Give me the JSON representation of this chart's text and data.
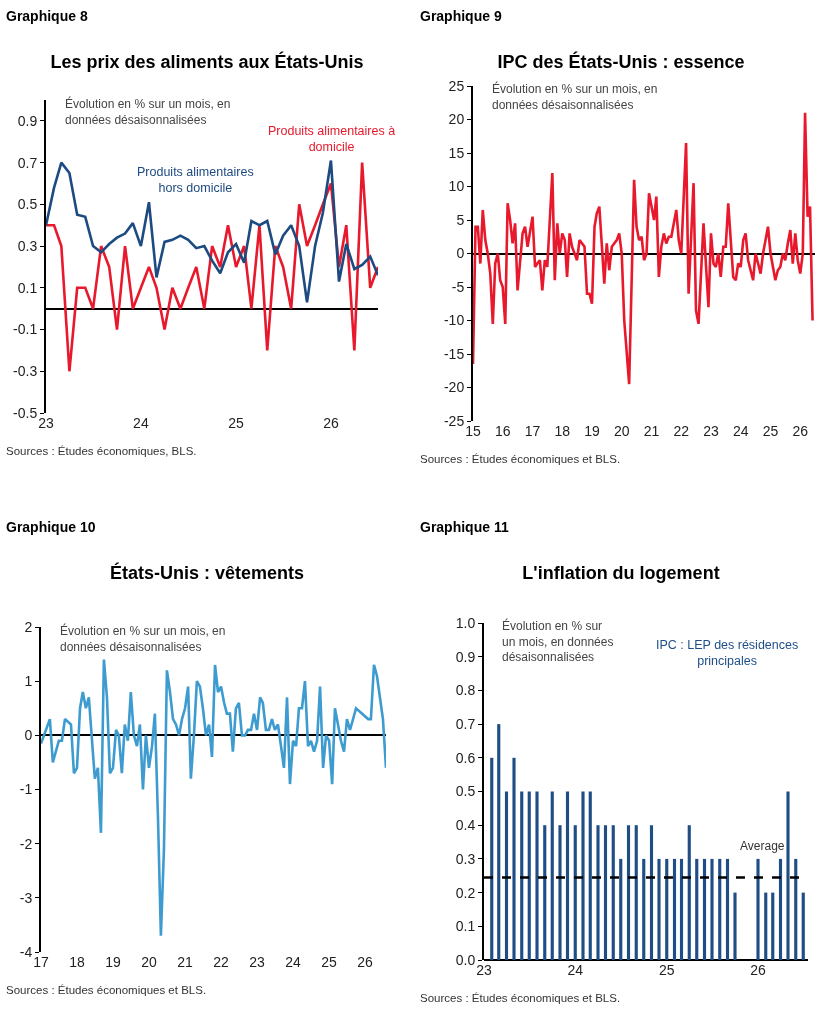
{
  "chart_data": [
    {
      "type": "line",
      "title": "Les prix des aliments aux États-Unis",
      "annotations": [
        "Graphique 8",
        "Évolution en % sur un mois, en données désaisonnalisées",
        "Sources : Études économiques, BLS."
      ],
      "x": [
        "2023-01",
        "2023-02",
        "2023-03",
        "2023-04",
        "2023-05",
        "2023-06",
        "2023-07",
        "2023-08",
        "2023-09",
        "2023-10",
        "2023-11",
        "2023-12",
        "2024-01",
        "2024-02",
        "2024-03",
        "2024-04",
        "2024-05",
        "2024-06",
        "2024-07",
        "2024-08",
        "2024-09",
        "2024-10",
        "2024-11",
        "2024-12",
        "2025-01",
        "2025-02",
        "2025-03",
        "2025-04",
        "2025-05",
        "2025-06",
        "2025-07",
        "2025-08",
        "2025-09",
        "2025-10",
        "2025-11",
        "2025-12",
        "2026-01",
        "2026-02",
        "2026-03",
        "2026-04",
        "2026-05",
        "2026-06",
        "2026-07"
      ],
      "series": [
        {
          "name": "Produits alimentaires à domicile",
          "color": "#e8192c",
          "values": [
            0.4,
            0.4,
            0.3,
            -0.3,
            0.1,
            0.1,
            0.0,
            0.3,
            0.2,
            -0.1,
            0.3,
            0.0,
            0.1,
            0.2,
            0.1,
            -0.1,
            0.1,
            0.0,
            0.1,
            0.2,
            0.0,
            0.3,
            0.2,
            0.4,
            0.2,
            0.3,
            0.0,
            0.4,
            -0.2,
            0.3,
            0.2,
            0.0,
            0.5,
            0.3,
            0.4,
            0.5,
            0.6,
            0.2,
            0.4,
            -0.2,
            0.7,
            0.1,
            0.2
          ]
        },
        {
          "name": "Produits alimentaires hors domicile",
          "color": "#1d4a80",
          "values": [
            0.4,
            0.58,
            0.7,
            0.65,
            0.45,
            0.44,
            0.3,
            0.27,
            0.31,
            0.34,
            0.36,
            0.41,
            0.3,
            0.51,
            0.15,
            0.32,
            0.33,
            0.35,
            0.33,
            0.29,
            0.3,
            0.23,
            0.17,
            0.27,
            0.31,
            0.22,
            0.42,
            0.4,
            0.42,
            0.26,
            0.35,
            0.4,
            0.3,
            0.03,
            0.3,
            0.46,
            0.71,
            0.13,
            0.31,
            0.19,
            0.21,
            0.25,
            0.16
          ]
        }
      ],
      "xlim": [
        "2023-01",
        "2026-07"
      ],
      "xticks": [
        {
          "value": "2023-01",
          "label": "23"
        },
        {
          "value": "2024-01",
          "label": "24"
        },
        {
          "value": "2025-01",
          "label": "25"
        },
        {
          "value": "2026-01",
          "label": "26"
        }
      ],
      "ylim": [
        -0.5,
        1.0
      ],
      "yticks": [
        -0.5,
        -0.3,
        -0.1,
        0.1,
        0.3,
        0.5,
        0.7,
        0.9
      ]
    },
    {
      "type": "line",
      "title": "IPC des États-Unis : essence",
      "annotations": [
        "Graphique 9",
        "Évolution en % sur un mois, en données désaisonnalisées",
        "Sources : Études économiques et BLS."
      ],
      "series": [
        {
          "color": "#e8192c",
          "x": [
            "2015-01",
            "2015-02",
            "2015-03",
            "2015-04",
            "2015-05",
            "2015-06",
            "2015-07",
            "2015-08",
            "2015-09",
            "2015-10",
            "2015-11",
            "2015-12",
            "2016-01",
            "2016-02",
            "2016-03",
            "2016-04",
            "2016-05",
            "2016-06",
            "2016-07",
            "2016-09",
            "2016-10",
            "2016-11",
            "2017-01",
            "2017-02",
            "2017-03",
            "2017-04",
            "2017-05",
            "2017-06",
            "2017-07",
            "2017-09",
            "2017-10",
            "2017-11",
            "2017-12",
            "2018-01",
            "2018-02",
            "2018-03",
            "2018-04",
            "2018-05",
            "2018-07",
            "2018-08",
            "2018-10",
            "2018-11",
            "2018-12",
            "2019-01",
            "2019-02",
            "2019-03",
            "2019-04",
            "2019-06",
            "2019-07",
            "2019-08",
            "2019-09",
            "2019-11",
            "2019-12",
            "2020-01",
            "2020-02",
            "2020-04",
            "2020-06",
            "2020-07",
            "2020-08",
            "2020-09",
            "2020-10",
            "2020-11",
            "2020-12",
            "2021-02",
            "2021-03",
            "2021-04",
            "2021-05",
            "2021-06",
            "2021-07",
            "2021-08",
            "2021-09",
            "2021-11",
            "2021-12",
            "2022-01",
            "2022-03",
            "2022-04",
            "2022-06",
            "2022-07",
            "2022-08",
            "2022-10",
            "2022-12",
            "2023-01",
            "2023-02",
            "2023-03",
            "2023-04",
            "2023-05",
            "2023-06",
            "2023-07",
            "2023-08",
            "2023-10",
            "2023-11",
            "2023-12",
            "2024-01",
            "2024-02",
            "2024-03",
            "2024-04",
            "2024-06",
            "2024-07",
            "2024-08",
            "2024-09",
            "2024-10",
            "2024-12",
            "2025-01",
            "2025-03",
            "2025-04",
            "2025-05",
            "2025-06",
            "2025-07",
            "2025-08",
            "2025-09",
            "2025-10",
            "2025-11",
            "2025-12",
            "2026-01",
            "2026-02",
            "2026-03",
            "2026-04",
            "2026-05",
            "2026-06"
          ],
          "values": [
            -16.5,
            4,
            4,
            -1.5,
            6.5,
            2,
            0,
            -3,
            -10.5,
            -1.5,
            0,
            -4,
            -5,
            -10.5,
            7.5,
            5,
            1.5,
            4.5,
            -5.5,
            3,
            4,
            1,
            5.5,
            -2,
            -1.5,
            -1,
            -5.5,
            -1,
            -2,
            12,
            -4,
            4.5,
            0,
            3,
            2,
            -3.5,
            3,
            1,
            -1,
            2,
            1,
            -6,
            -6,
            -7.5,
            4,
            6,
            7,
            -4.5,
            1.5,
            -2.5,
            1,
            2,
            3,
            0,
            -10,
            -19.5,
            11,
            4,
            2,
            2.5,
            -1,
            0,
            9,
            5,
            8.5,
            -3.5,
            1,
            3,
            1.5,
            2.5,
            2.5,
            6.5,
            2,
            0,
            16.5,
            -6,
            10.5,
            -8.5,
            -10.5,
            4.5,
            -8,
            3,
            -1.5,
            -2,
            0,
            -3.5,
            1,
            1,
            7.5,
            -3.5,
            -4,
            -1.5,
            -2,
            2,
            3,
            -1,
            -4,
            0,
            -1.5,
            -3,
            0,
            4,
            0,
            -4,
            -2.5,
            -2,
            0,
            -1,
            1.5,
            3.5,
            -1.5,
            3,
            -1,
            -3,
            0,
            21,
            5.5,
            7,
            -10
          ]
        }
      ],
      "xlim": [
        "2015-01",
        "2026-07"
      ],
      "xticks": [
        {
          "value": "2015-01",
          "label": "15"
        },
        {
          "value": "2016-01",
          "label": "16"
        },
        {
          "value": "2017-01",
          "label": "17"
        },
        {
          "value": "2018-01",
          "label": "18"
        },
        {
          "value": "2019-01",
          "label": "19"
        },
        {
          "value": "2020-01",
          "label": "20"
        },
        {
          "value": "2021-01",
          "label": "21"
        },
        {
          "value": "2022-01",
          "label": "22"
        },
        {
          "value": "2023-01",
          "label": "23"
        },
        {
          "value": "2024-01",
          "label": "24"
        },
        {
          "value": "2025-01",
          "label": "25"
        },
        {
          "value": "2026-01",
          "label": "26"
        }
      ],
      "ylim": [
        -25,
        25
      ],
      "yticks": [
        -25,
        -20,
        -15,
        -10,
        -5,
        0,
        5,
        10,
        15,
        20,
        25
      ]
    },
    {
      "type": "line",
      "title": "États-Unis : vêtements",
      "annotations": [
        "Graphique 10",
        "Évolution en % sur un mois, en données désaisonnalisées",
        "Sources : Études économiques et BLS."
      ],
      "series": [
        {
          "color": "#3d9bd0",
          "x": [
            "2017-01",
            "2017-04",
            "2017-05",
            "2017-07",
            "2017-08",
            "2017-09",
            "2017-11",
            "2017-12",
            "2018-01",
            "2018-02",
            "2018-03",
            "2018-04",
            "2018-05",
            "2018-07",
            "2018-08",
            "2018-09",
            "2018-10",
            "2018-11",
            "2018-12",
            "2019-01",
            "2019-02",
            "2019-03",
            "2019-04",
            "2019-05",
            "2019-06",
            "2019-07",
            "2019-08",
            "2019-09",
            "2019-10",
            "2019-11",
            "2019-12",
            "2020-01",
            "2020-02",
            "2020-03",
            "2020-04",
            "2020-05",
            "2020-06",
            "2020-07",
            "2020-08",
            "2020-09",
            "2020-10",
            "2020-11",
            "2020-12",
            "2021-01",
            "2021-02",
            "2021-03",
            "2021-04",
            "2021-05",
            "2021-06",
            "2021-07",
            "2021-08",
            "2021-09",
            "2021-10",
            "2021-11",
            "2021-12",
            "2022-01",
            "2022-02",
            "2022-03",
            "2022-04",
            "2022-05",
            "2022-06",
            "2022-07",
            "2022-08",
            "2022-09",
            "2022-10",
            "2022-11",
            "2022-12",
            "2023-01",
            "2023-02",
            "2023-03",
            "2023-04",
            "2023-05",
            "2023-06",
            "2023-07",
            "2023-08",
            "2023-09",
            "2023-10",
            "2023-11",
            "2023-12",
            "2024-01",
            "2024-02",
            "2024-03",
            "2024-04",
            "2024-05",
            "2024-06",
            "2024-07",
            "2024-08",
            "2024-09",
            "2024-10",
            "2024-11",
            "2024-12",
            "2025-01",
            "2025-02",
            "2025-03",
            "2025-04",
            "2025-05",
            "2025-06",
            "2025-07",
            "2025-08",
            "2025-09",
            "2025-10",
            "2026-02",
            "2026-03",
            "2026-04",
            "2026-05",
            "2026-07",
            "2026-08"
          ],
          "values": [
            -0.15,
            0.3,
            -0.5,
            -0.1,
            -0.1,
            0.3,
            0.2,
            -0.7,
            -0.6,
            0.5,
            0.8,
            0.5,
            0.7,
            -0.8,
            -0.6,
            -1.8,
            1.4,
            0.7,
            -0.7,
            -0.6,
            0.1,
            0,
            -0.7,
            0.2,
            -0.1,
            0.8,
            0,
            -0.2,
            0.2,
            -1.0,
            0,
            -0.6,
            -0.2,
            0.4,
            -1.5,
            -3.7,
            -2.1,
            1.2,
            0.8,
            0.3,
            0.2,
            0,
            0.3,
            0.5,
            0.9,
            -0.8,
            0,
            1.0,
            0.9,
            0.5,
            0,
            0.2,
            -0.4,
            1.3,
            0.8,
            0.9,
            0.6,
            0.4,
            0.4,
            -0.3,
            0.5,
            0.6,
            0,
            0,
            0.1,
            0.1,
            0.4,
            0.1,
            0.7,
            0.6,
            0.1,
            0.1,
            0.3,
            0.1,
            0.2,
            -0.2,
            -0.6,
            0.7,
            -0.9,
            -0.1,
            -0.2,
            0.5,
            0.5,
            1.0,
            -0.2,
            -0.1,
            -0.3,
            -0.1,
            0.9,
            -0.6,
            0,
            -0.1,
            -0.9,
            0.5,
            0.2,
            -0.1,
            -0.3,
            0.3,
            0.1,
            0.3,
            0.5,
            0.3,
            0.3,
            1.3,
            1.1,
            0.3,
            -0.6
          ]
        }
      ],
      "xlim": [
        "2017-01",
        "2026-08"
      ],
      "xticks": [
        {
          "value": "2017-01",
          "label": "17"
        },
        {
          "value": "2018-01",
          "label": "18"
        },
        {
          "value": "2019-01",
          "label": "19"
        },
        {
          "value": "2020-01",
          "label": "20"
        },
        {
          "value": "2021-01",
          "label": "21"
        },
        {
          "value": "2022-01",
          "label": "22"
        },
        {
          "value": "2023-01",
          "label": "23"
        },
        {
          "value": "2024-01",
          "label": "24"
        },
        {
          "value": "2025-01",
          "label": "25"
        },
        {
          "value": "2026-01",
          "label": "26"
        }
      ],
      "ylim": [
        -4,
        2
      ],
      "yticks": [
        -4,
        -3,
        -2,
        -1,
        0,
        1,
        2
      ]
    },
    {
      "type": "bar",
      "title": "L'inflation du logement",
      "annotations": [
        "Graphique 11",
        "Évolution en % sur un mois, en données désaisonnalisées",
        "Sources : Études économiques et BLS."
      ],
      "x": [
        "2023-02",
        "2023-03",
        "2023-04",
        "2023-05",
        "2023-06",
        "2023-07",
        "2023-08",
        "2023-09",
        "2023-10",
        "2023-11",
        "2023-12",
        "2024-01",
        "2024-02",
        "2024-03",
        "2024-04",
        "2024-05",
        "2024-06",
        "2024-07",
        "2024-08",
        "2024-09",
        "2024-10",
        "2024-11",
        "2024-12",
        "2025-01",
        "2025-02",
        "2025-03",
        "2025-04",
        "2025-05",
        "2025-06",
        "2025-07",
        "2025-08",
        "2025-09",
        "2025-10",
        "2025-11",
        "2025-12",
        "2026-01",
        "2026-02",
        "2026-03",
        "2026-04",
        "2026-05",
        "2026-06",
        "2026-07"
      ],
      "series": [
        {
          "name": "IPC : LEP des résidences principales",
          "color": "#1f4e87",
          "values": [
            0.6,
            0.7,
            0.5,
            0.6,
            0.5,
            0.5,
            0.5,
            0.4,
            0.5,
            0.4,
            0.5,
            0.4,
            0.5,
            0.5,
            0.4,
            0.4,
            0.4,
            0.3,
            0.4,
            0.4,
            0.3,
            0.4,
            0.3,
            0.3,
            0.3,
            0.3,
            0.4,
            0.3,
            0.3,
            0.3,
            0.3,
            0.3,
            0.2,
            null,
            null,
            0.3,
            0.2,
            0.2,
            0.3,
            0.5,
            0.3,
            0.2
          ]
        }
      ],
      "ref_lines": [
        {
          "axis": "y",
          "value": 0.245,
          "label": "Average",
          "color": "#000000",
          "line_style": "dashed"
        }
      ],
      "xlim": [
        "2023-01",
        "2026-07-20"
      ],
      "xticks": [
        {
          "value": "2023-01",
          "label": "23"
        },
        {
          "value": "2024-01",
          "label": "24"
        },
        {
          "value": "2025-01",
          "label": "25"
        },
        {
          "value": "2026-01",
          "label": "26"
        }
      ],
      "ylim": [
        0,
        1.0
      ],
      "yticks": [
        {
          "value": 0,
          "label": "0.0"
        },
        0.1,
        0.2,
        0.3,
        0.4,
        0.5,
        0.6,
        0.7,
        0.8,
        0.9,
        {
          "value": 1.0,
          "label": "1.0"
        }
      ]
    }
  ]
}
